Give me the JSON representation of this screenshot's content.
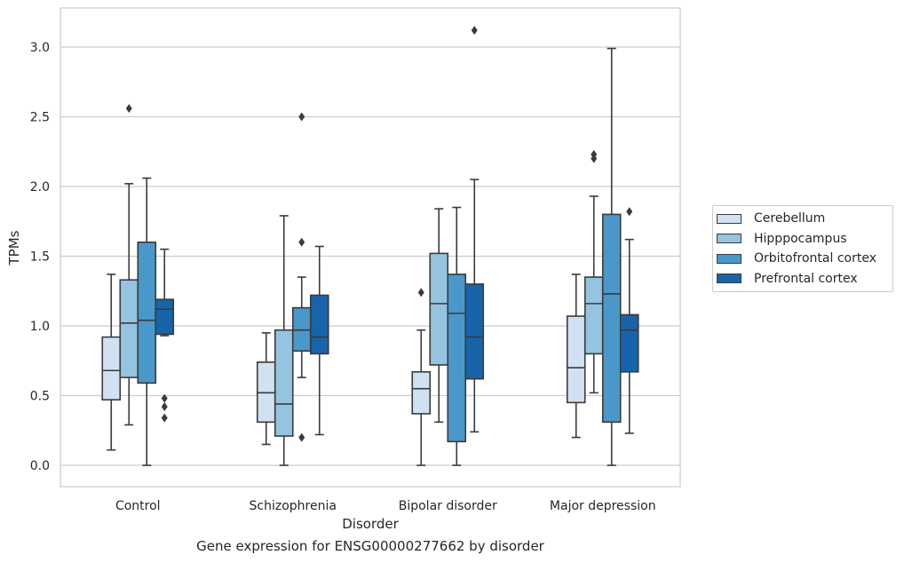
{
  "chart_data": {
    "type": "box",
    "title": "",
    "caption": "Gene expression for ENSG00000277662 by disorder",
    "xlabel": "Disorder",
    "ylabel": "TPMs",
    "ylim": [
      -0.15,
      3.27
    ],
    "yticks": [
      "0.0",
      "0.5",
      "1.0",
      "1.5",
      "2.0",
      "2.5",
      "3.0"
    ],
    "grid": true,
    "legend_position": "right",
    "categories": [
      "Control",
      "Schizophrenia",
      "Bipolar disorder",
      "Major depression"
    ],
    "series": [
      {
        "name": "Cerebellum",
        "color": "#d0e1f2",
        "boxes": [
          {
            "whisker_low": 0.11,
            "q1": 0.47,
            "median": 0.68,
            "q3": 0.92,
            "whisker_high": 1.37,
            "outliers": []
          },
          {
            "whisker_low": 0.15,
            "q1": 0.31,
            "median": 0.52,
            "q3": 0.74,
            "whisker_high": 0.95,
            "outliers": []
          },
          {
            "whisker_low": 0.0,
            "q1": 0.37,
            "median": 0.55,
            "q3": 0.67,
            "whisker_high": 0.97,
            "outliers": [
              1.24
            ]
          },
          {
            "whisker_low": 0.2,
            "q1": 0.45,
            "median": 0.7,
            "q3": 1.07,
            "whisker_high": 1.37,
            "outliers": []
          }
        ]
      },
      {
        "name": "Hipppocampus",
        "color": "#94c4df",
        "boxes": [
          {
            "whisker_low": 0.29,
            "q1": 0.63,
            "median": 1.02,
            "q3": 1.33,
            "whisker_high": 2.02,
            "outliers": [
              2.56
            ]
          },
          {
            "whisker_low": 0.0,
            "q1": 0.21,
            "median": 0.44,
            "q3": 0.97,
            "whisker_high": 1.79,
            "outliers": []
          },
          {
            "whisker_low": 0.31,
            "q1": 0.72,
            "median": 1.16,
            "q3": 1.52,
            "whisker_high": 1.84,
            "outliers": []
          },
          {
            "whisker_low": 0.52,
            "q1": 0.8,
            "median": 1.16,
            "q3": 1.35,
            "whisker_high": 1.93,
            "outliers": [
              2.2,
              2.23
            ]
          }
        ]
      },
      {
        "name": "Orbitofrontal cortex",
        "color": "#4a98c9",
        "boxes": [
          {
            "whisker_low": 0.0,
            "q1": 0.59,
            "median": 1.04,
            "q3": 1.6,
            "whisker_high": 2.06,
            "outliers": []
          },
          {
            "whisker_low": 0.63,
            "q1": 0.82,
            "median": 0.97,
            "q3": 1.13,
            "whisker_high": 1.35,
            "outliers": [
              0.2,
              1.6,
              2.5
            ]
          },
          {
            "whisker_low": 0.0,
            "q1": 0.17,
            "median": 1.09,
            "q3": 1.37,
            "whisker_high": 1.85,
            "outliers": []
          },
          {
            "whisker_low": 0.0,
            "q1": 0.31,
            "median": 1.23,
            "q3": 1.8,
            "whisker_high": 2.99,
            "outliers": []
          }
        ]
      },
      {
        "name": "Prefrontal cortex",
        "color": "#1764ab",
        "boxes": [
          {
            "whisker_low": 0.93,
            "q1": 0.94,
            "median": 1.12,
            "q3": 1.19,
            "whisker_high": 1.55,
            "outliers": [
              0.34,
              0.42,
              0.48
            ]
          },
          {
            "whisker_low": 0.22,
            "q1": 0.8,
            "median": 0.92,
            "q3": 1.22,
            "whisker_high": 1.57,
            "outliers": []
          },
          {
            "whisker_low": 0.24,
            "q1": 0.62,
            "median": 0.92,
            "q3": 1.3,
            "whisker_high": 2.05,
            "outliers": [
              3.12
            ]
          },
          {
            "whisker_low": 0.23,
            "q1": 0.67,
            "median": 0.97,
            "q3": 1.08,
            "whisker_high": 1.62,
            "outliers": [
              1.82
            ]
          }
        ]
      }
    ]
  }
}
